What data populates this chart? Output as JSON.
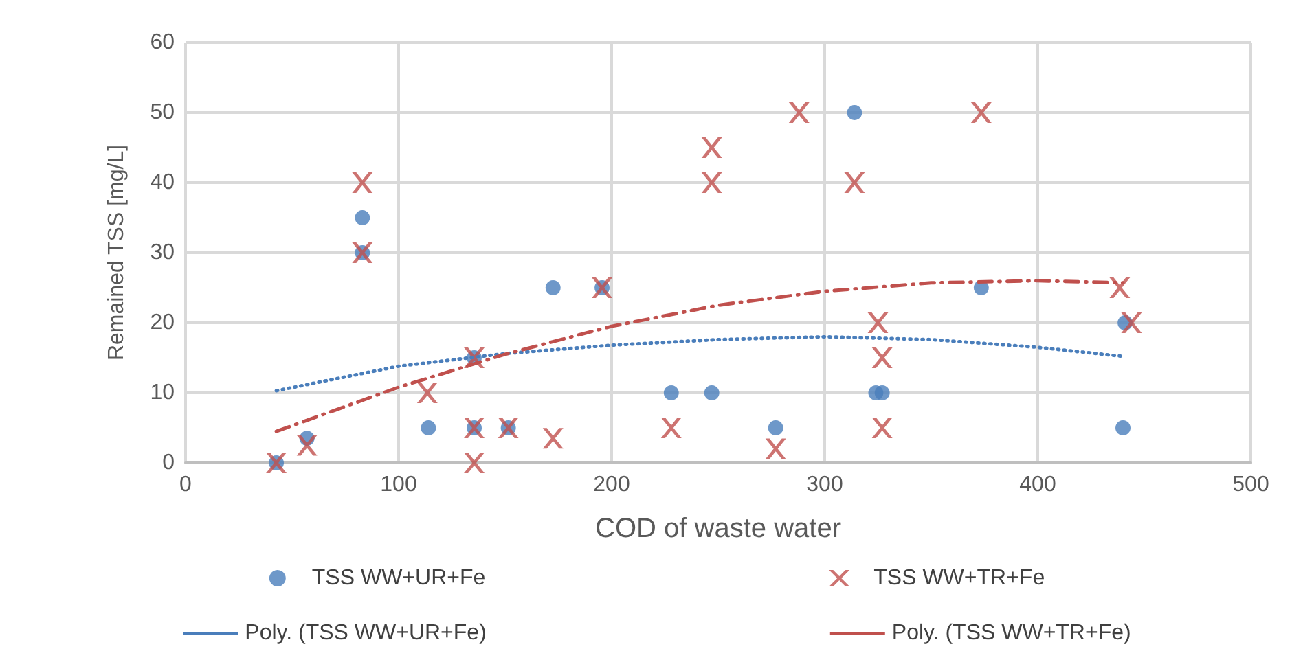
{
  "chart_data": {
    "type": "scatter",
    "xlabel": "COD of waste water",
    "ylabel": "Remained TSS [mg/L]",
    "xlim": [
      0,
      500
    ],
    "xticks": [
      0,
      100,
      200,
      300,
      400,
      500
    ],
    "ylim": [
      0,
      60
    ],
    "yticks": [
      0,
      10,
      20,
      30,
      40,
      50,
      60
    ],
    "grid": true,
    "legend": "bottom",
    "series": [
      {
        "name": "TSS WW+UR+Fe",
        "marker": "circle",
        "color": "#4a7ebb",
        "x": [
          42.6,
          57,
          83,
          83,
          114,
          135.5,
          135.5,
          151.5,
          172.5,
          195.5,
          228,
          247,
          277,
          314,
          324,
          327,
          373.5,
          440,
          441
        ],
        "values": [
          0,
          3.5,
          35,
          30,
          5,
          15,
          5,
          5,
          25,
          25,
          10,
          10,
          5,
          50,
          10,
          10,
          25,
          5,
          20
        ]
      },
      {
        "name": "TSS WW+TR+Fe",
        "marker": "cross",
        "color": "#c0504d",
        "x": [
          42.6,
          57,
          83,
          83,
          113.5,
          135.5,
          135.5,
          135.5,
          151.5,
          172.5,
          195.5,
          228,
          247,
          247,
          277,
          288,
          314,
          325,
          327,
          327,
          373.5,
          438.5,
          444
        ],
        "values": [
          0,
          2.5,
          40,
          30,
          10,
          15,
          5,
          0,
          5,
          3.5,
          25,
          5,
          45,
          40,
          2,
          50,
          40,
          20,
          15,
          5,
          50,
          25,
          20
        ]
      },
      {
        "name": "Poly. (TSS WW+UR+Fe)",
        "type": "line",
        "marker": "none",
        "line_style": "dotted",
        "color": "#4a7ebb",
        "x": [
          42.6,
          100,
          150,
          200,
          250,
          300,
          350,
          400,
          440
        ],
        "values": [
          10.3,
          13.8,
          15.6,
          16.8,
          17.6,
          18,
          17.6,
          16.5,
          15.2
        ]
      },
      {
        "name": "Poly. (TSS WW+TR+Fe)",
        "type": "line",
        "marker": "none",
        "line_style": "dashed",
        "color": "#c0504d",
        "x": [
          42.6,
          100,
          150,
          200,
          250,
          300,
          350,
          400,
          440
        ],
        "values": [
          4.5,
          10.8,
          15.5,
          19.5,
          22.5,
          24.5,
          25.7,
          26,
          25.7
        ]
      }
    ]
  }
}
